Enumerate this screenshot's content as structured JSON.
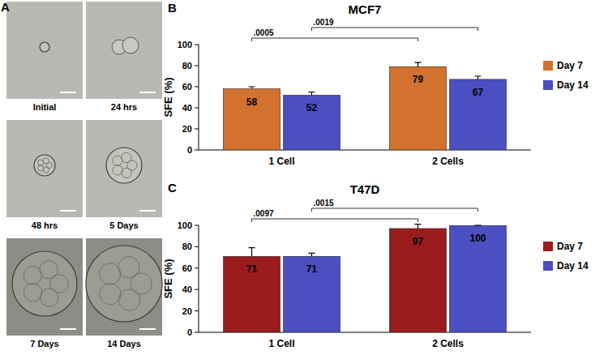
{
  "panel_a": {
    "label": "A",
    "captions": [
      "Initial",
      "24 hrs",
      "48 hrs",
      "5 Days",
      "7 Days",
      "14 Days"
    ]
  },
  "chart_data": [
    {
      "type": "bar",
      "panel_label": "B",
      "title": "MCF7",
      "y_label": "SFE (%)",
      "categories": [
        "1 Cell",
        "2 Cells"
      ],
      "series": [
        {
          "name": "Day 7",
          "color": "#d2722e",
          "values": [
            58,
            79
          ],
          "errors": [
            2,
            4
          ]
        },
        {
          "name": "Day 14",
          "color": "#4b4fc1",
          "values": [
            52,
            67
          ],
          "errors": [
            3,
            3
          ]
        }
      ],
      "ylim": [
        0,
        100
      ],
      "yticks": [
        0,
        20,
        40,
        60,
        80,
        100
      ],
      "grid": false,
      "legend": "right",
      "data_labels": true,
      "annotations": [
        {
          "text": ".0005",
          "series": "Day 7"
        },
        {
          "text": ".0019",
          "series": "Day 14"
        }
      ]
    },
    {
      "type": "bar",
      "panel_label": "C",
      "title": "T47D",
      "y_label": "SFE (%)",
      "categories": [
        "1 Cell",
        "2 Cells"
      ],
      "series": [
        {
          "name": "Day 7",
          "color": "#9b1c1c",
          "values": [
            71,
            97
          ],
          "errors": [
            8,
            4
          ]
        },
        {
          "name": "Day 14",
          "color": "#4b4fc1",
          "values": [
            71,
            100
          ],
          "errors": [
            3,
            0
          ]
        }
      ],
      "ylim": [
        0,
        100
      ],
      "yticks": [
        0,
        20,
        40,
        60,
        80,
        100
      ],
      "grid": false,
      "legend": "right",
      "data_labels": true,
      "annotations": [
        {
          "text": ".0097",
          "series": "Day 7"
        },
        {
          "text": ".0015",
          "series": "Day 14"
        }
      ]
    }
  ]
}
